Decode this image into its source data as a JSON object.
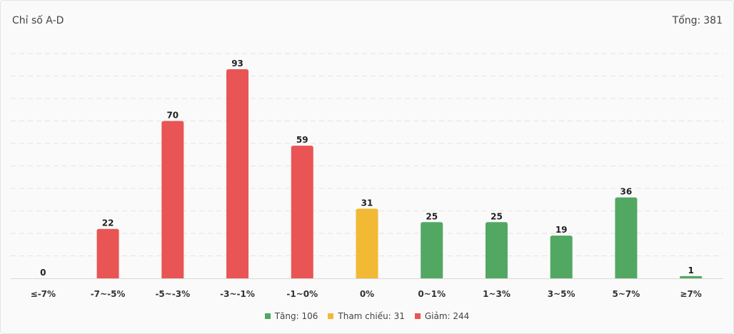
{
  "header": {
    "title": "Chỉ số A-D",
    "total_label": "Tổng:",
    "total_value": "381"
  },
  "legend": {
    "items": [
      {
        "label": "Tăng: 106",
        "color": "#52a862"
      },
      {
        "label": "Tham chiếu: 31",
        "color": "#f1b934"
      },
      {
        "label": "Giảm: 244",
        "color": "#e95454"
      }
    ]
  },
  "chart_data": {
    "type": "bar",
    "categories": [
      "≤-7%",
      "-7~-5%",
      "-5~-3%",
      "-3~-1%",
      "-1~0%",
      "0%",
      "0~1%",
      "1~3%",
      "3~5%",
      "5~7%",
      "≥7%"
    ],
    "values": [
      0,
      22,
      70,
      93,
      59,
      31,
      25,
      25,
      19,
      36,
      1
    ],
    "bar_colors": [
      "#e95454",
      "#e95454",
      "#e95454",
      "#e95454",
      "#e95454",
      "#f1b934",
      "#52a862",
      "#52a862",
      "#52a862",
      "#52a862",
      "#52a862"
    ],
    "ylim": [
      0,
      100
    ],
    "grid": true,
    "legend_position": "bottom"
  }
}
